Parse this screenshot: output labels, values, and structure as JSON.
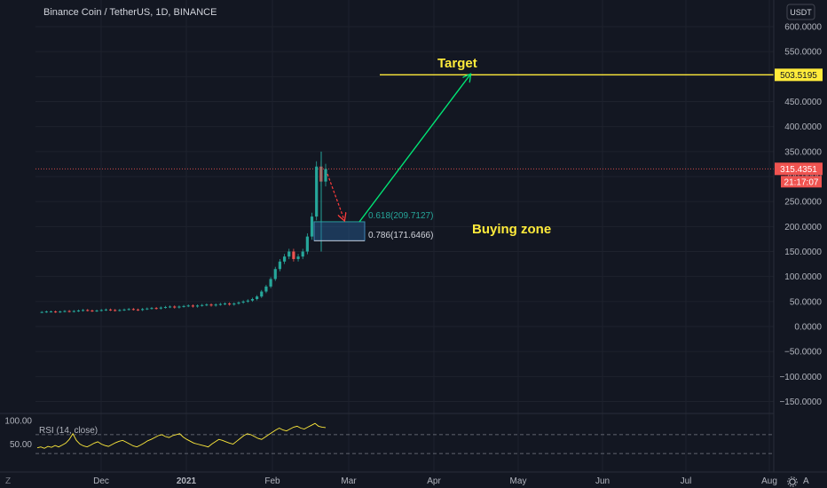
{
  "header": {
    "symbol_title": "Binance Coin / TetherUS, 1D, BINANCE"
  },
  "price_axis": {
    "currency": "USDT",
    "ticks": [
      "600.0000",
      "550.0000",
      "500.0000",
      "450.0000",
      "400.0000",
      "350.0000",
      "300.0000",
      "250.0000",
      "200.0000",
      "150.0000",
      "100.0000",
      "50.0000",
      "0.0000",
      "−50.0000",
      "−100.0000",
      "−150.0000"
    ],
    "tick_values": [
      600,
      550,
      500,
      450,
      400,
      350,
      300,
      250,
      200,
      150,
      100,
      50,
      0,
      -50,
      -100,
      -150
    ]
  },
  "badges": {
    "target_price": "503.5195",
    "last_price": "315.4351",
    "countdown": "21:17:07"
  },
  "time_axis": {
    "labels": [
      "Dec",
      "2021",
      "Feb",
      "Mar",
      "Apr",
      "May",
      "Jun",
      "Jul",
      "Aug"
    ]
  },
  "rsi": {
    "label": "RSI (14, close)",
    "ticks": [
      "100.00",
      "50.00"
    ],
    "tick_values": [
      100,
      50
    ],
    "upper_band": 70,
    "lower_band": 30
  },
  "annotations": {
    "target_label": "Target",
    "buying_zone_label": "Buying zone",
    "fib_618": "0.618(209.7127)",
    "fib_786": "0.786(171.6466)"
  },
  "corner": {
    "zoom_icon": "Z",
    "settings_icon": "gear-icon",
    "auto_icon": "A"
  },
  "chart_data": {
    "type": "candlestick",
    "title": "Binance Coin / TetherUS, 1D, BINANCE",
    "y_unit": "USDT",
    "ylim": [
      -180,
      630
    ],
    "x_labels": [
      "Dec",
      "2021",
      "Feb",
      "Mar",
      "Apr",
      "May",
      "Jun",
      "Jul",
      "Aug"
    ],
    "price_path": [
      29,
      29,
      30,
      30,
      29,
      30,
      31,
      30,
      31,
      32,
      33,
      32,
      31,
      32,
      33,
      34,
      33,
      32,
      33,
      34,
      35,
      34,
      33,
      35,
      36,
      37,
      36,
      38,
      39,
      40,
      38,
      40,
      41,
      42,
      40,
      42,
      43,
      44,
      42,
      44,
      45,
      46,
      44,
      46,
      48,
      50,
      52,
      55,
      60,
      70,
      80,
      95,
      115,
      130,
      140,
      150,
      135,
      140,
      150,
      180,
      220,
      320,
      290,
      315
    ],
    "last_price": 315.4351,
    "horizontal_lines": [
      {
        "label": "Target",
        "value": 503.5195
      }
    ],
    "fibonacci_zone": {
      "label": "Buying zone",
      "levels": [
        {
          "ratio": 0.618,
          "value": 209.7127
        },
        {
          "ratio": 0.786,
          "value": 171.6466
        }
      ]
    },
    "rsi": {
      "period": 14,
      "source": "close",
      "ylim": [
        0,
        100
      ],
      "bands": [
        70,
        30
      ],
      "values": [
        42,
        44,
        41,
        45,
        43,
        47,
        44,
        48,
        52,
        60,
        72,
        58,
        50,
        46,
        44,
        48,
        52,
        55,
        50,
        47,
        45,
        49,
        53,
        56,
        58,
        54,
        50,
        46,
        44,
        48,
        52,
        57,
        60,
        64,
        68,
        70,
        66,
        64,
        68,
        70,
        72,
        65,
        60,
        56,
        52,
        50,
        48,
        46,
        44,
        50,
        55,
        60,
        58,
        55,
        52,
        50,
        56,
        62,
        68,
        72,
        70,
        66,
        62,
        60,
        65,
        70,
        75,
        80,
        84,
        80,
        78,
        82,
        86,
        88,
        84,
        82,
        86,
        90,
        94,
        88,
        86,
        85
      ]
    }
  }
}
